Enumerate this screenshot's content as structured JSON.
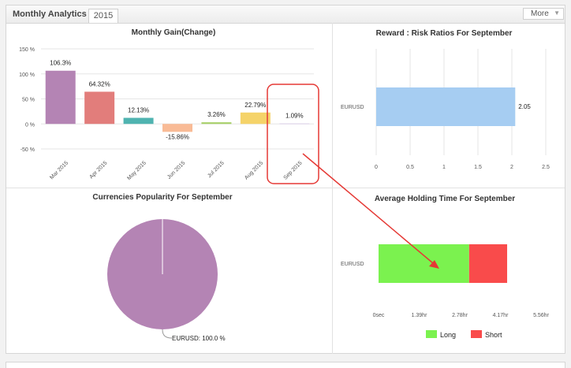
{
  "header": {
    "title": "Monthly Analytics",
    "tab_label": "2015",
    "more_label": "More",
    "more_icon": "chevron-down-icon"
  },
  "chart_data": [
    {
      "type": "bar",
      "title": "Monthly Gain(Change)",
      "categories": [
        "Mar 2015",
        "Apr 2015",
        "May 2015",
        "Jun 2015",
        "Jul 2015",
        "Aug 2015",
        "Sep 2015"
      ],
      "values": [
        106.3,
        64.32,
        12.13,
        -15.86,
        3.26,
        22.79,
        1.09
      ],
      "labels": [
        "106.3%",
        "64.32%",
        "12.13%",
        "-15.86%",
        "3.26%",
        "22.79%",
        "1.09%"
      ],
      "colors": [
        "#b484b4",
        "#e27d7b",
        "#4fb3b0",
        "#f9bb96",
        "#a6cf66",
        "#f5d369",
        "#dcd2ea"
      ],
      "yticks": [
        150,
        100,
        50,
        0,
        -50
      ],
      "ytick_labels": [
        "150 %",
        "100 %",
        "50 %",
        "0 %",
        "-50 %"
      ],
      "ylim": [
        -50,
        150
      ],
      "grid": true,
      "highlight_category": "Sep 2015"
    },
    {
      "type": "bar",
      "orientation": "horizontal",
      "title": "Reward : Risk Ratios For September",
      "categories": [
        "EURUSD"
      ],
      "values": [
        2.05
      ],
      "labels": [
        "2.05"
      ],
      "color": "#a6cdf2",
      "xticks": [
        0,
        0.5,
        1,
        1.5,
        2,
        2.5
      ],
      "xtick_labels": [
        "0",
        "0.5",
        "1",
        "1.5",
        "2",
        "2.5"
      ],
      "xlim": [
        0,
        2.5
      ],
      "grid": true
    },
    {
      "type": "pie",
      "title": "Currencies Popularity For September",
      "slices": [
        {
          "name": "EURUSD",
          "value": 100.0,
          "label": "EURUSD: 100.0 %",
          "color": "#b484b4"
        }
      ]
    },
    {
      "type": "bar",
      "orientation": "horizontal",
      "stacked": true,
      "title": "Average Holding Time For September",
      "categories": [
        "EURUSD"
      ],
      "series": [
        {
          "name": "Long",
          "values": [
            3.1
          ],
          "color": "#7bf24f"
        },
        {
          "name": "Short",
          "values": [
            1.3
          ],
          "color": "#f94b4b"
        }
      ],
      "xticks": [
        0,
        1.39,
        2.78,
        4.17,
        5.56
      ],
      "xtick_labels": [
        "0sec",
        "1.39hr",
        "2.78hr",
        "4.17hr",
        "5.56hr"
      ],
      "xlim": [
        0,
        5.56
      ],
      "legend": "bottom"
    }
  ],
  "annotation": {
    "color": "#e53935"
  }
}
